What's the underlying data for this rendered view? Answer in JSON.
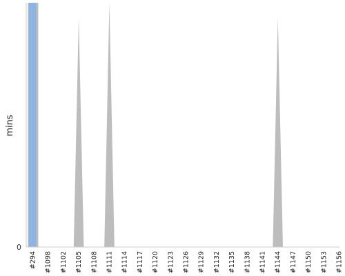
{
  "chart_data": {
    "type": "area",
    "title": "",
    "xlabel": "",
    "ylabel": "mins",
    "ylim": [
      0,
      1
    ],
    "grid": false,
    "legend": "none",
    "categories": [
      "#294",
      "#1098",
      "#1102",
      "#1105",
      "#1108",
      "#1111",
      "#1114",
      "#1117",
      "#1120",
      "#1123",
      "#1126",
      "#1129",
      "#1132",
      "#1135",
      "#1138",
      "#1141",
      "#1144",
      "#1147",
      "#1150",
      "#1153",
      "#1156"
    ],
    "y_tick_labels": [
      "0"
    ],
    "series": [
      {
        "color": "#bdbdbd",
        "points": [
          {
            "x": "#294",
            "y": 1.0
          },
          {
            "x": "#1105",
            "y": 0.0
          },
          {
            "x": "#1105",
            "y": 0.94
          },
          {
            "x": "#1108",
            "y": 0.0
          },
          {
            "x": "#1111",
            "y": 0.0
          },
          {
            "x": "#1111",
            "y": 1.0
          },
          {
            "x": "#1114",
            "y": 0.0
          },
          {
            "x": "#1141",
            "y": 0.0
          },
          {
            "x": "#1144",
            "y": 0.94
          },
          {
            "x": "#1147",
            "y": 0.0
          }
        ]
      }
    ],
    "highlight": {
      "category": "#294",
      "color": "#8db4e2"
    },
    "colors": {
      "axis": "#cccccc",
      "area": "#bdbdbd",
      "highlight": "#8db4e2"
    }
  }
}
